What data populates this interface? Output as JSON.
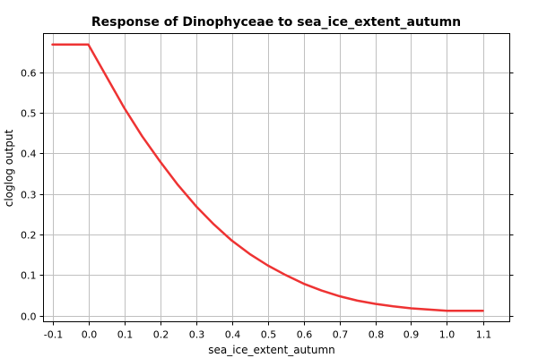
{
  "chart_data": {
    "type": "line",
    "title": "Response of Dinophyceae to sea_ice_extent_autumn",
    "xlabel": "sea_ice_extent_autumn",
    "ylabel": "cloglog output",
    "xlim": [
      -0.125,
      1.175
    ],
    "ylim": [
      -0.015,
      0.695
    ],
    "xticks": [
      -0.1,
      0.0,
      0.1,
      0.2,
      0.3,
      0.4,
      0.5,
      0.6,
      0.7,
      0.8,
      0.9,
      1.0,
      1.1
    ],
    "xtick_labels": [
      "-0.1",
      "0.0",
      "0.1",
      "0.2",
      "0.3",
      "0.4",
      "0.5",
      "0.6",
      "0.7",
      "0.8",
      "0.9",
      "1.0",
      "1.1"
    ],
    "yticks": [
      0.0,
      0.1,
      0.2,
      0.3,
      0.4,
      0.5,
      0.6
    ],
    "ytick_labels": [
      "0.0",
      "0.1",
      "0.2",
      "0.3",
      "0.4",
      "0.5",
      "0.6"
    ],
    "grid": true,
    "series": [
      {
        "color": "#ee3333",
        "x": [
          -0.1,
          0.0,
          0.05,
          0.1,
          0.15,
          0.2,
          0.25,
          0.3,
          0.35,
          0.4,
          0.45,
          0.5,
          0.55,
          0.6,
          0.65,
          0.7,
          0.75,
          0.8,
          0.85,
          0.9,
          0.95,
          1.0,
          1.1
        ],
        "y": [
          0.668,
          0.668,
          0.59,
          0.512,
          0.442,
          0.38,
          0.322,
          0.27,
          0.225,
          0.185,
          0.152,
          0.124,
          0.1,
          0.079,
          0.062,
          0.048,
          0.037,
          0.029,
          0.023,
          0.018,
          0.015,
          0.012,
          0.012
        ]
      }
    ]
  }
}
